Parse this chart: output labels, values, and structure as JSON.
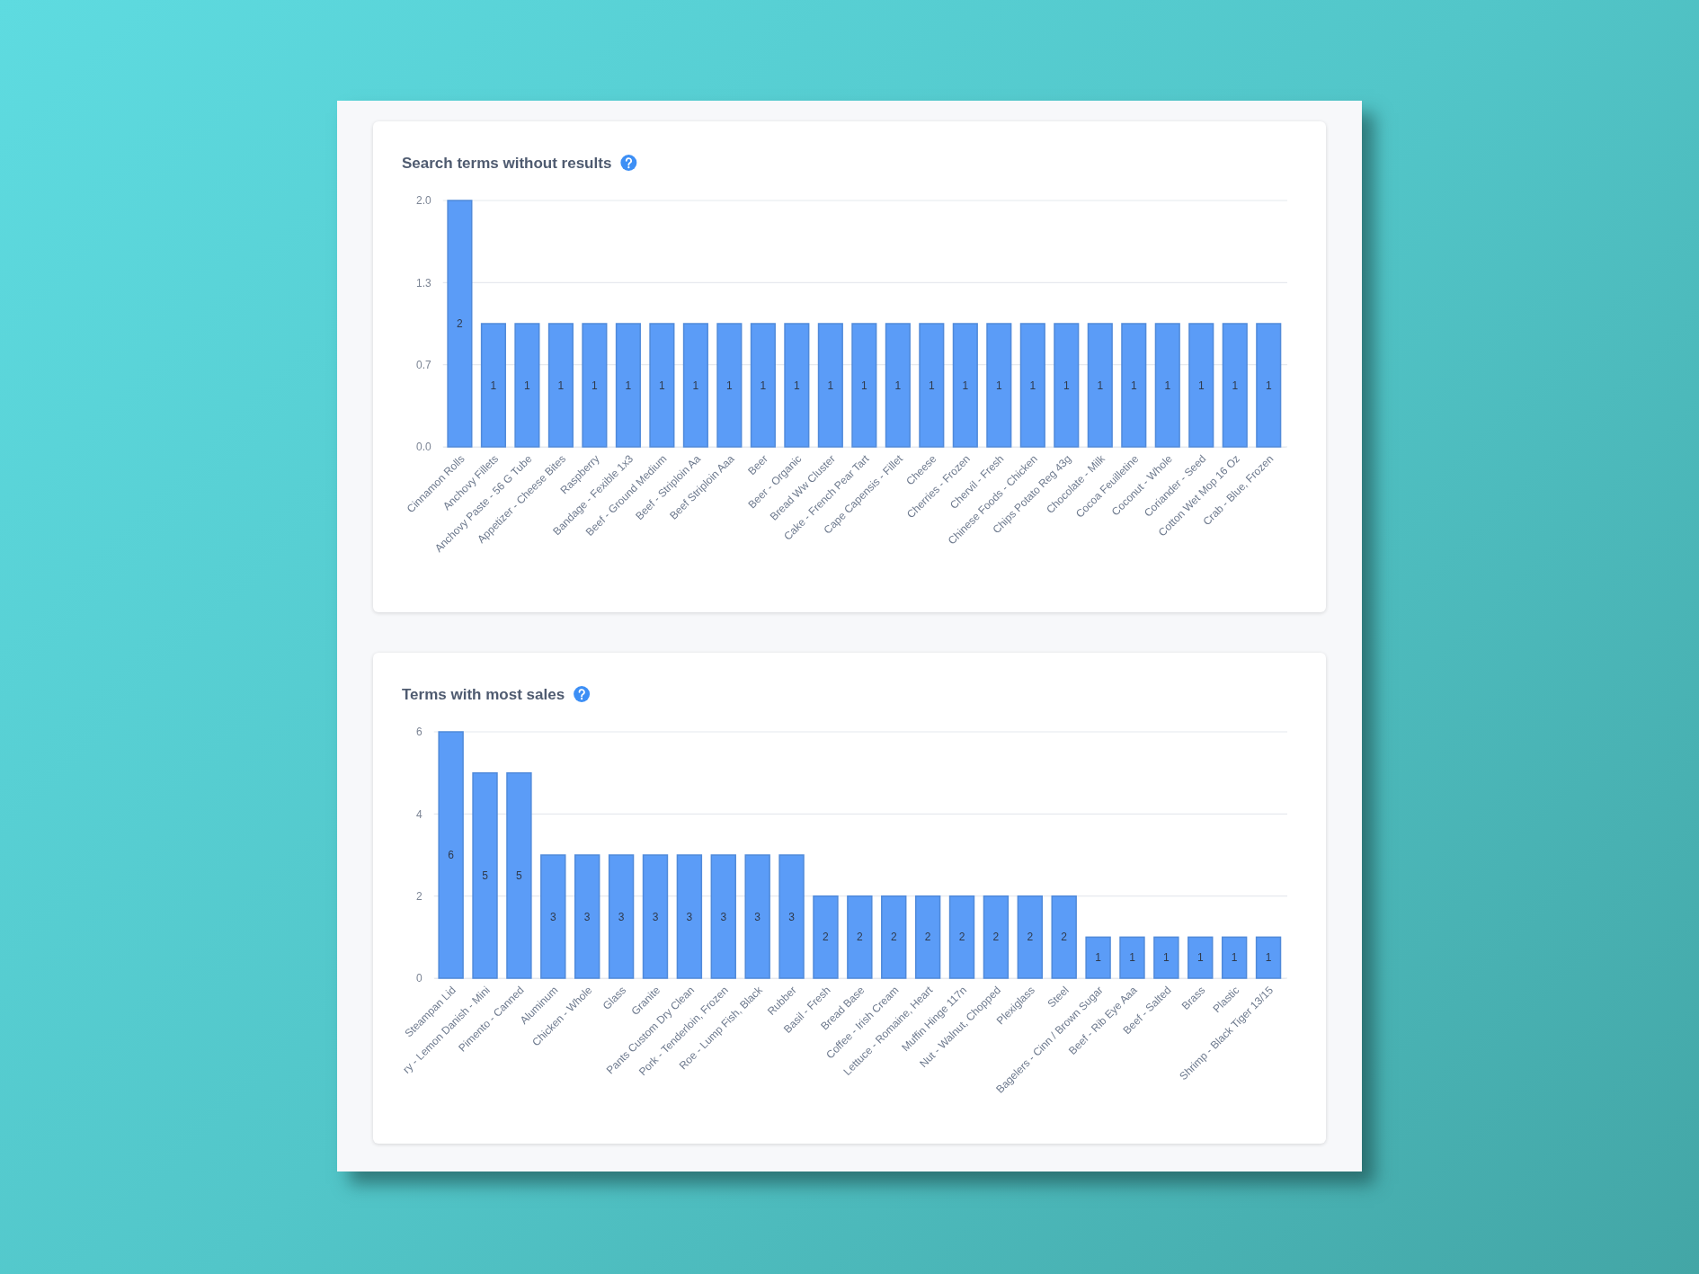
{
  "chart_data": [
    {
      "type": "bar",
      "title": "Search terms without results",
      "categories": [
        "Cinnamon Rolls",
        "Anchovy Fillets",
        "Anchovy Paste - 56 G Tube",
        "Appetizer - Cheese Bites",
        "Raspberry",
        "Bandage - Fexible 1x3",
        "Beef - Ground Medium",
        "Beef - Striploin Aa",
        "Beef Striploin Aaa",
        "Beer",
        "Beer - Organic",
        "Bread Ww Cluster",
        "Cake - French Pear Tart",
        "Cape Capensis - Fillet",
        "Cheese",
        "Cherries - Frozen",
        "Chervil - Fresh",
        "Chinese Foods - Chicken",
        "Chips Potato Reg 43g",
        "Chocolate - Milk",
        "Cocoa Feuilletine",
        "Coconut - Whole",
        "Coriander - Seed",
        "Cotton Wet Mop 16 Oz",
        "Crab - Blue, Frozen"
      ],
      "values": [
        2,
        1,
        1,
        1,
        1,
        1,
        1,
        1,
        1,
        1,
        1,
        1,
        1,
        1,
        1,
        1,
        1,
        1,
        1,
        1,
        1,
        1,
        1,
        1,
        1
      ],
      "color": "#5b9cf7",
      "ylim": [
        0,
        2
      ],
      "yticks": [
        {
          "value": 0,
          "label": "0.0"
        },
        {
          "value": 0.6667,
          "label": "0.7"
        },
        {
          "value": 1.3333,
          "label": "1.3"
        },
        {
          "value": 2,
          "label": "2.0"
        }
      ],
      "grid": "y",
      "data_labels": true
    },
    {
      "type": "bar",
      "title": "Terms with most sales",
      "categories": [
        "Steampan Lid",
        "ry - Lemon Danish - Mini",
        "Pimento - Canned",
        "Aluminum",
        "Chicken - Whole",
        "Glass",
        "Granite",
        "Pants Custom Dry Clean",
        "Pork - Tenderloin, Frozen",
        "Roe - Lump Fish, Black",
        "Rubber",
        "Basil - Fresh",
        "Bread Base",
        "Coffee - Irish Cream",
        "Lettuce - Romaine, Heart",
        "Muffin Hinge 117n",
        "Nut - Walnut, Chopped",
        "Plexiglass",
        "Steel",
        "Bagelers - Cinn / Brown Sugar",
        "Beef - Rib Eye Aaa",
        "Beef - Salted",
        "Brass",
        "Plastic",
        "Shrimp - Black Tiger 13/15"
      ],
      "values": [
        6,
        5,
        5,
        3,
        3,
        3,
        3,
        3,
        3,
        3,
        3,
        2,
        2,
        2,
        2,
        2,
        2,
        2,
        2,
        1,
        1,
        1,
        1,
        1,
        1
      ],
      "color": "#5b9cf7",
      "ylim": [
        0,
        6
      ],
      "yticks": [
        0,
        2,
        4,
        6
      ],
      "grid": "y",
      "data_labels": true
    }
  ]
}
